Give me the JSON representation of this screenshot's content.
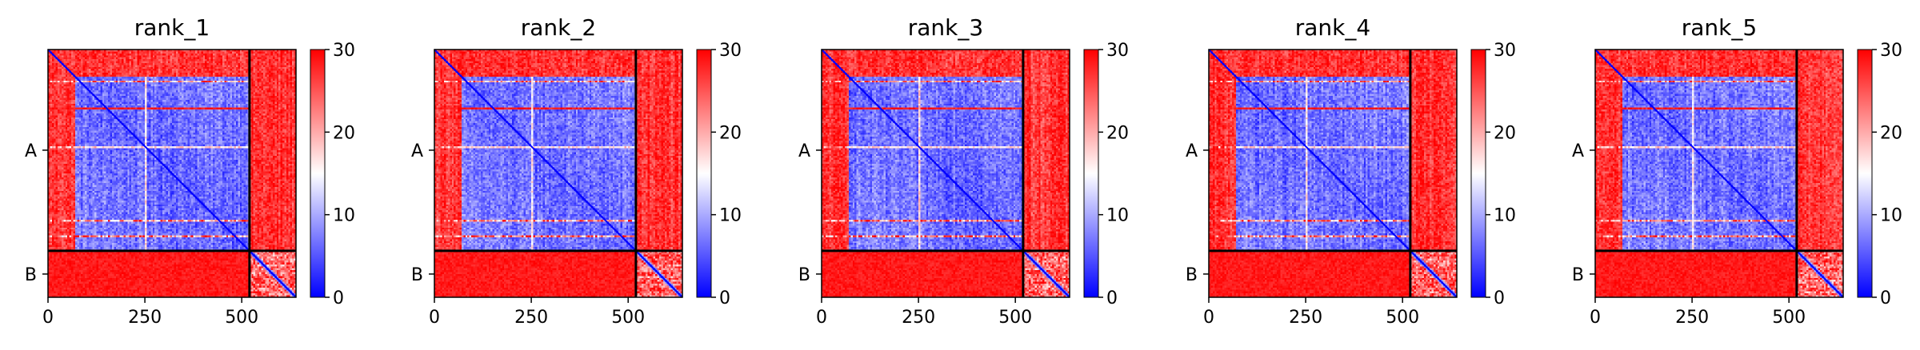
{
  "chart_data": [
    {
      "type": "heatmap",
      "title": "rank_1",
      "chains": [
        "A",
        "B"
      ],
      "chain_boundary": 520,
      "matrix_size": 640,
      "xticks": [
        0,
        250,
        500
      ],
      "colorbar": {
        "min": 0,
        "max": 30,
        "ticks": [
          0,
          10,
          20,
          30
        ],
        "colors": [
          "#0000ff",
          "#ffffff",
          "#ff0000"
        ]
      },
      "highlight_rows": [
        80,
        250,
        440,
        480
      ],
      "note_value_range": [
        0,
        30
      ]
    },
    {
      "type": "heatmap",
      "title": "rank_2",
      "chains": [
        "A",
        "B"
      ],
      "chain_boundary": 520,
      "matrix_size": 640,
      "xticks": [
        0,
        250,
        500
      ],
      "colorbar": {
        "min": 0,
        "max": 30,
        "ticks": [
          0,
          10,
          20,
          30
        ],
        "colors": [
          "#0000ff",
          "#ffffff",
          "#ff0000"
        ]
      },
      "highlight_rows": [
        80,
        250,
        440,
        480
      ]
    },
    {
      "type": "heatmap",
      "title": "rank_3",
      "chains": [
        "A",
        "B"
      ],
      "chain_boundary": 520,
      "matrix_size": 640,
      "xticks": [
        0,
        250,
        500
      ],
      "colorbar": {
        "min": 0,
        "max": 30,
        "ticks": [
          0,
          10,
          20,
          30
        ],
        "colors": [
          "#0000ff",
          "#ffffff",
          "#ff0000"
        ]
      },
      "highlight_rows": [
        80,
        250,
        440,
        480
      ]
    },
    {
      "type": "heatmap",
      "title": "rank_4",
      "chains": [
        "A",
        "B"
      ],
      "chain_boundary": 520,
      "matrix_size": 640,
      "xticks": [
        0,
        250,
        500
      ],
      "colorbar": {
        "min": 0,
        "max": 30,
        "ticks": [
          0,
          10,
          20,
          30
        ],
        "colors": [
          "#0000ff",
          "#ffffff",
          "#ff0000"
        ]
      },
      "highlight_rows": [
        80,
        250,
        440,
        480
      ]
    },
    {
      "type": "heatmap",
      "title": "rank_5",
      "chains": [
        "A",
        "B"
      ],
      "chain_boundary": 520,
      "matrix_size": 640,
      "xticks": [
        0,
        250,
        500
      ],
      "colorbar": {
        "min": 0,
        "max": 30,
        "ticks": [
          0,
          10,
          20,
          30
        ],
        "colors": [
          "#0000ff",
          "#ffffff",
          "#ff0000"
        ]
      },
      "highlight_rows": [
        80,
        250,
        440,
        480
      ]
    }
  ]
}
